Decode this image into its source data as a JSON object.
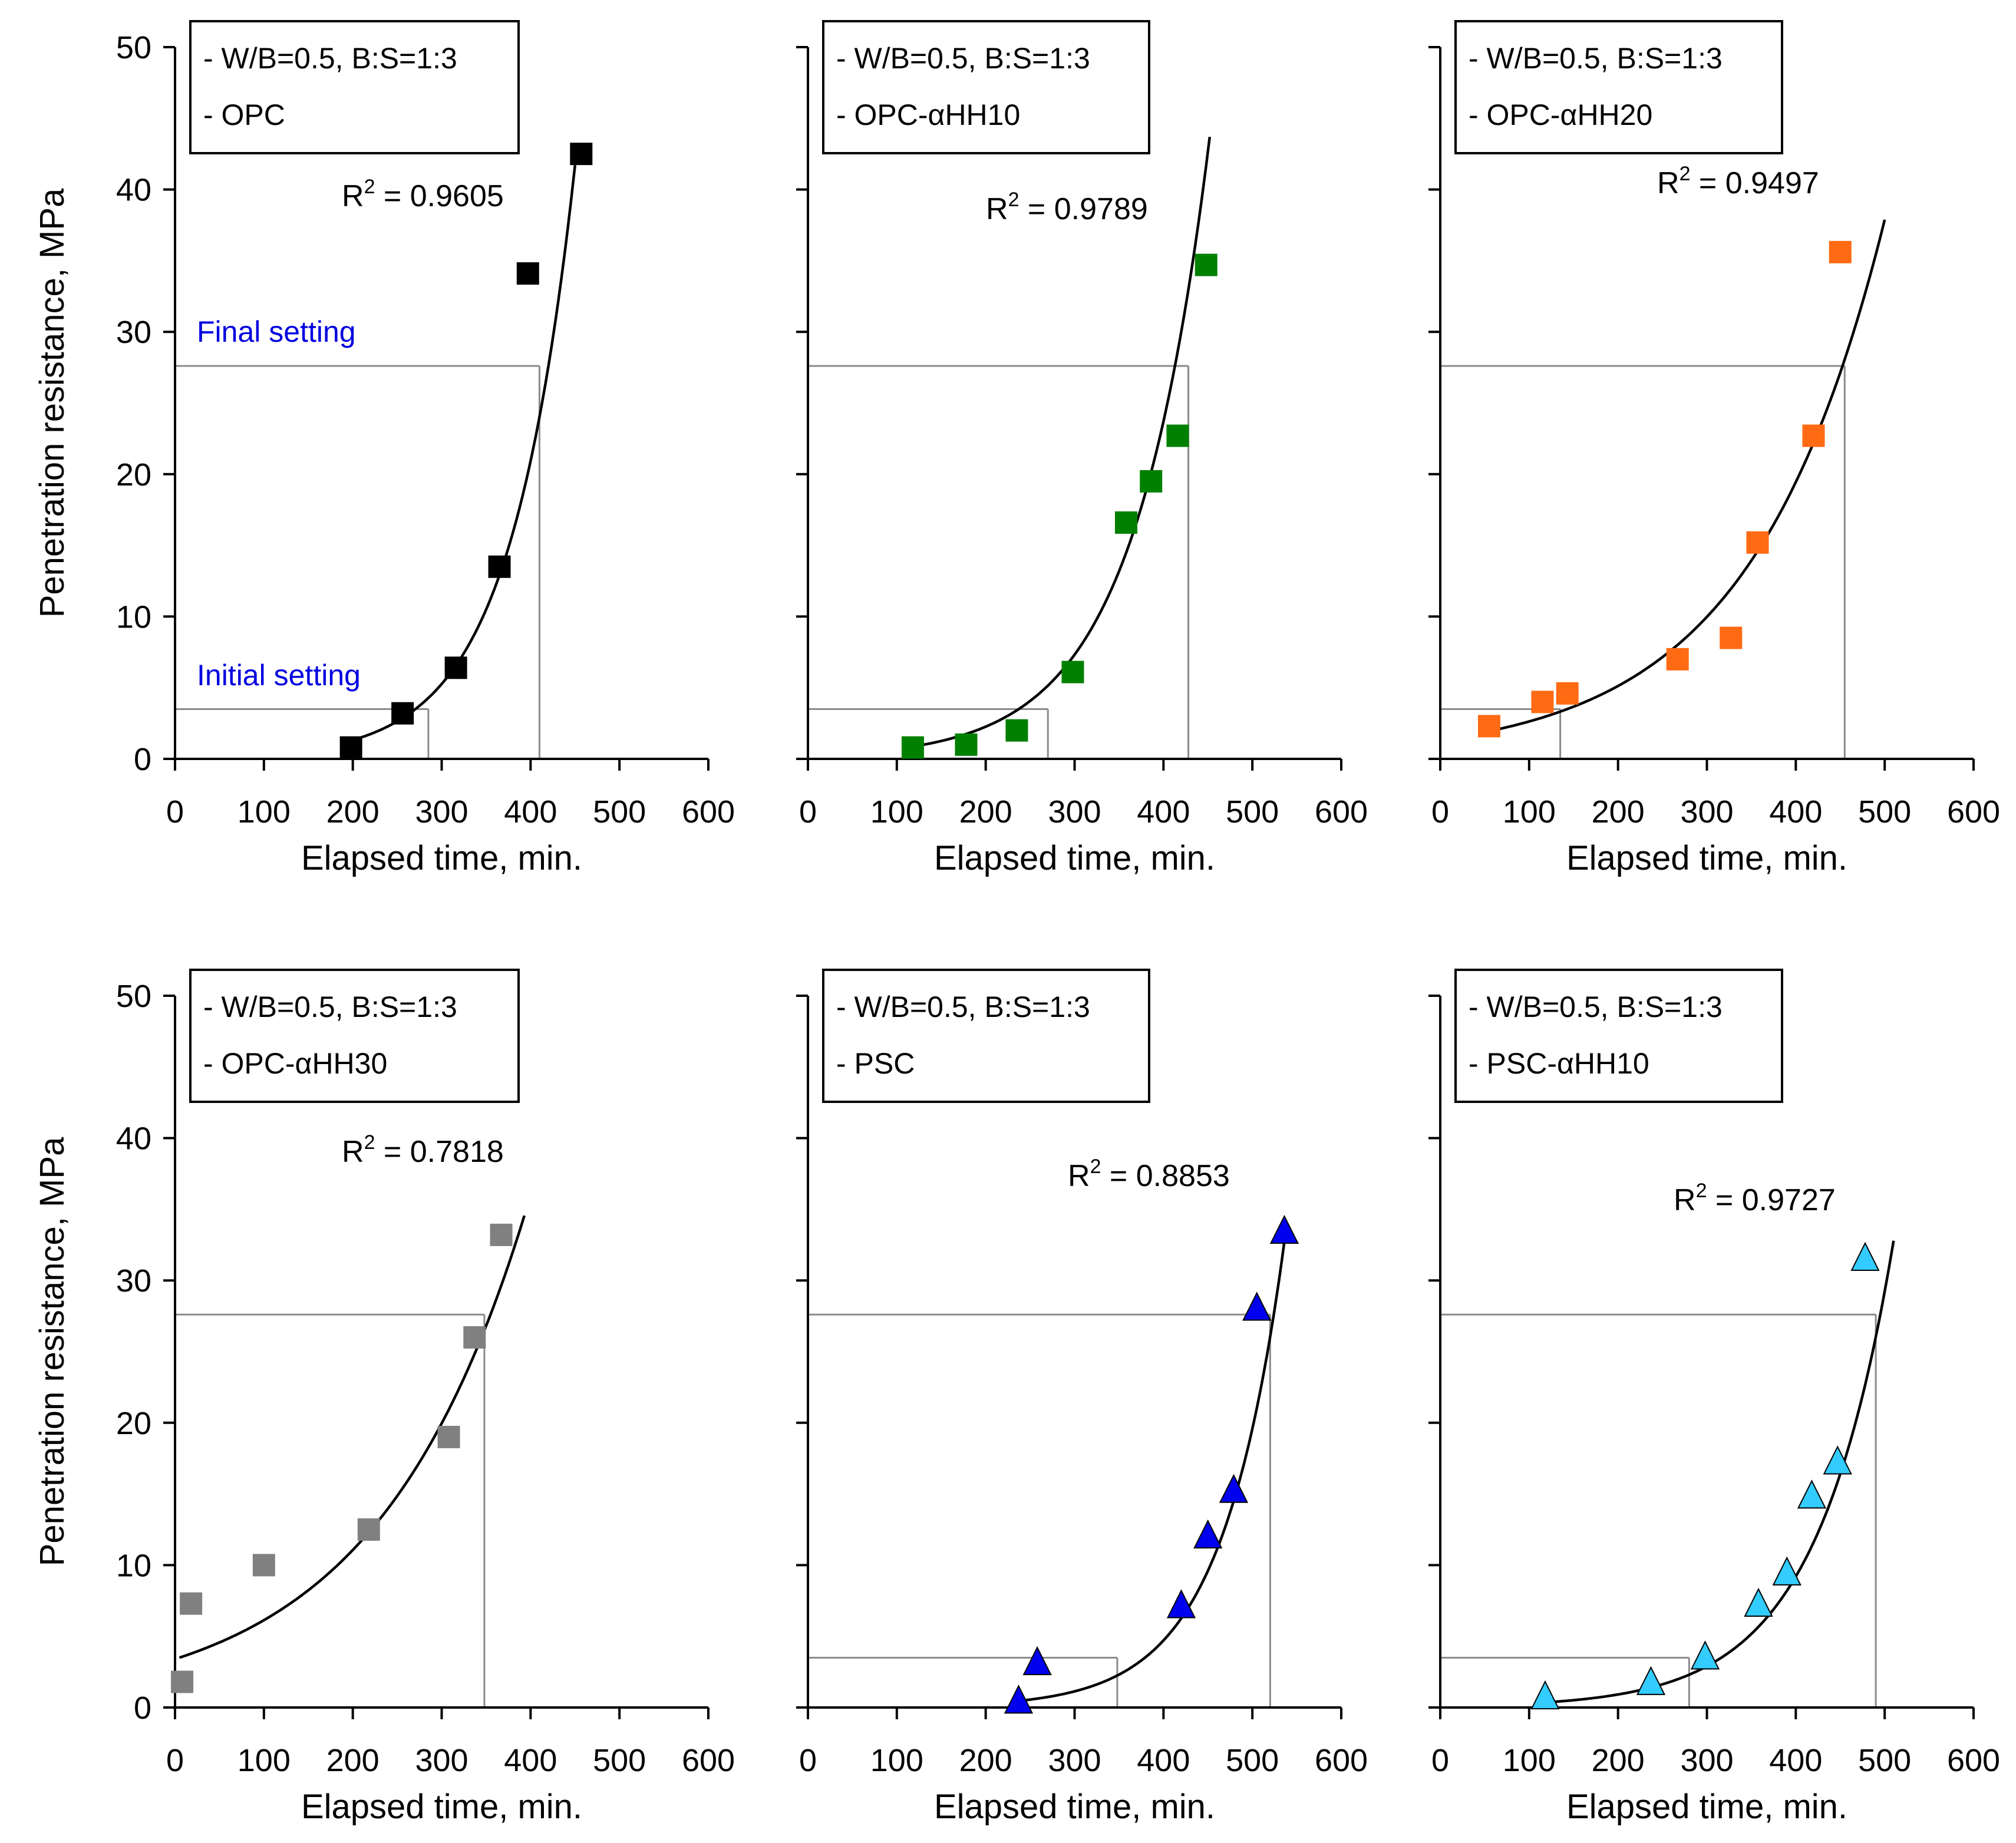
{
  "chart_data": [
    {
      "id": "opc",
      "type": "scatter",
      "legend": [
        "- W/B=0.5, B:S=1:3",
        "- OPC"
      ],
      "xlabel": "Elapsed time, min.",
      "ylabel": "Penetration resistance, MPa",
      "xlim": [
        0,
        600
      ],
      "ylim": [
        0,
        50
      ],
      "xticks": [
        "0",
        "100",
        "200",
        "300",
        "400",
        "500",
        "600"
      ],
      "yticks": [
        "0",
        "10",
        "20",
        "30",
        "40",
        "50"
      ],
      "marker": "square",
      "color": "#000000",
      "x": [
        198,
        256,
        316,
        365,
        397,
        457
      ],
      "y": [
        0.8,
        3.2,
        6.4,
        13.5,
        34.1,
        42.5
      ],
      "r2_base": "R",
      "r2_sup": "2",
      "r2_value": " = 0.9605",
      "fit": {
        "a": 0.0838,
        "b": 0.0138,
        "x_start": 200,
        "x_end": 450
      },
      "initial_setting": {
        "label": "Initial setting",
        "time": 285,
        "value": 3.5
      },
      "final_setting": {
        "label": "Final setting",
        "time": 410,
        "value": 27.6
      }
    },
    {
      "id": "opc-ahh10",
      "type": "scatter",
      "legend": [
        "- W/B=0.5, B:S=1:3",
        "- OPC-αHH10"
      ],
      "xlabel": "Elapsed time, min.",
      "ylabel": "",
      "xlim": [
        0,
        600
      ],
      "ylim": [
        0,
        50
      ],
      "xticks": [
        "0",
        "100",
        "200",
        "300",
        "400",
        "500",
        "600"
      ],
      "yticks": [],
      "marker": "square",
      "color": "#008000",
      "x": [
        118,
        178,
        235,
        298,
        358,
        386,
        416,
        448
      ],
      "y": [
        0.8,
        1.0,
        2.0,
        6.1,
        16.6,
        19.5,
        22.7,
        34.7
      ],
      "r2_base": "R",
      "r2_sup": "2",
      "r2_value": " = 0.9789",
      "fit": {
        "a": 0.2157,
        "b": 0.01175,
        "x_start": 118,
        "x_end": 452
      },
      "initial_setting": {
        "label": "",
        "time": 270,
        "value": 3.5
      },
      "final_setting": {
        "label": "",
        "time": 428,
        "value": 27.6
      }
    },
    {
      "id": "opc-ahh20",
      "type": "scatter",
      "legend": [
        "- W/B=0.5, B:S=1:3",
        "- OPC-αHH20"
      ],
      "xlabel": "Elapsed time, min.",
      "ylabel": "",
      "xlim": [
        0,
        600
      ],
      "ylim": [
        0,
        50
      ],
      "xticks": [
        "0",
        "100",
        "200",
        "300",
        "400",
        "500",
        "600"
      ],
      "yticks": [],
      "marker": "square",
      "color": "#ff6a13",
      "x": [
        55,
        115,
        143,
        267,
        327,
        357,
        420,
        450
      ],
      "y": [
        2.3,
        4.0,
        4.6,
        7.0,
        8.5,
        15.2,
        22.7,
        35.6
      ],
      "r2_base": "R",
      "r2_sup": "2",
      "r2_value": " = 0.9497",
      "fit": {
        "a": 1.349,
        "b": 0.00667,
        "x_start": 55,
        "x_end": 500
      },
      "initial_setting": {
        "label": "",
        "time": 135,
        "value": 3.5
      },
      "final_setting": {
        "label": "",
        "time": 455,
        "value": 27.6
      }
    },
    {
      "id": "opc-ahh30",
      "type": "scatter",
      "legend": [
        "- W/B=0.5, B:S=1:3",
        "- OPC-αHH30"
      ],
      "xlabel": "Elapsed time, min.",
      "ylabel": "Penetration resistance, MPa",
      "xlim": [
        0,
        600
      ],
      "ylim": [
        0,
        50
      ],
      "xticks": [
        "0",
        "100",
        "200",
        "300",
        "400",
        "500",
        "600"
      ],
      "yticks": [
        "0",
        "10",
        "20",
        "30",
        "40",
        "50"
      ],
      "marker": "square",
      "color": "#808080",
      "x": [
        8,
        18,
        100,
        218,
        308,
        337,
        367
      ],
      "y": [
        1.8,
        7.3,
        10.0,
        12.5,
        19.0,
        26.0,
        33.2
      ],
      "r2_base": "R",
      "r2_sup": "2",
      "r2_value": " = 0.7818",
      "fit": {
        "a": 3.4,
        "b": 0.0059,
        "x_start": 5,
        "x_end": 393
      },
      "initial_setting": {
        "label": "",
        "time": -1,
        "value": 3.5
      },
      "final_setting": {
        "label": "",
        "time": 348,
        "value": 27.6
      }
    },
    {
      "id": "psc",
      "type": "scatter",
      "legend": [
        "- W/B=0.5, B:S=1:3",
        "- PSC"
      ],
      "xlabel": "Elapsed time, min.",
      "ylabel": "",
      "xlim": [
        0,
        600
      ],
      "ylim": [
        0,
        50
      ],
      "xticks": [
        "0",
        "100",
        "200",
        "300",
        "400",
        "500",
        "600"
      ],
      "yticks": [],
      "marker": "triangle",
      "color": "#0000ee",
      "x": [
        237,
        258,
        420,
        450,
        479,
        505,
        536
      ],
      "y": [
        0.4,
        3.1,
        7.1,
        12.0,
        15.2,
        28.0,
        33.4
      ],
      "r2_base": "R",
      "r2_sup": "2",
      "r2_value": " = 0.8853",
      "fit": {
        "a": 0.01576,
        "b": 0.01425,
        "x_start": 237,
        "x_end": 537
      },
      "initial_setting": {
        "label": "",
        "time": 348,
        "value": 3.5
      },
      "final_setting": {
        "label": "",
        "time": 520,
        "value": 27.6
      }
    },
    {
      "id": "psc-ahh10",
      "type": "scatter",
      "legend": [
        "- W/B=0.5, B:S=1:3",
        "- PSC-αHH10"
      ],
      "xlabel": "Elapsed time, min.",
      "ylabel": "",
      "xlim": [
        0,
        600
      ],
      "ylim": [
        0,
        50
      ],
      "xticks": [
        "0",
        "100",
        "200",
        "300",
        "400",
        "500",
        "600"
      ],
      "yticks": [],
      "marker": "triangle",
      "color": "#33ccff",
      "x": [
        118,
        237,
        298,
        358,
        390,
        418,
        447,
        478
      ],
      "y": [
        0.7,
        1.7,
        3.5,
        7.2,
        9.4,
        14.8,
        17.2,
        31.5
      ],
      "r2_base": "R",
      "r2_sup": "2",
      "r2_value": " = 0.9727",
      "fit": {
        "a": 0.0907,
        "b": 0.01155,
        "x_start": 120,
        "x_end": 510
      },
      "initial_setting": {
        "label": "",
        "time": 280,
        "value": 3.5
      },
      "final_setting": {
        "label": "",
        "time": 490,
        "value": 27.6
      }
    }
  ]
}
